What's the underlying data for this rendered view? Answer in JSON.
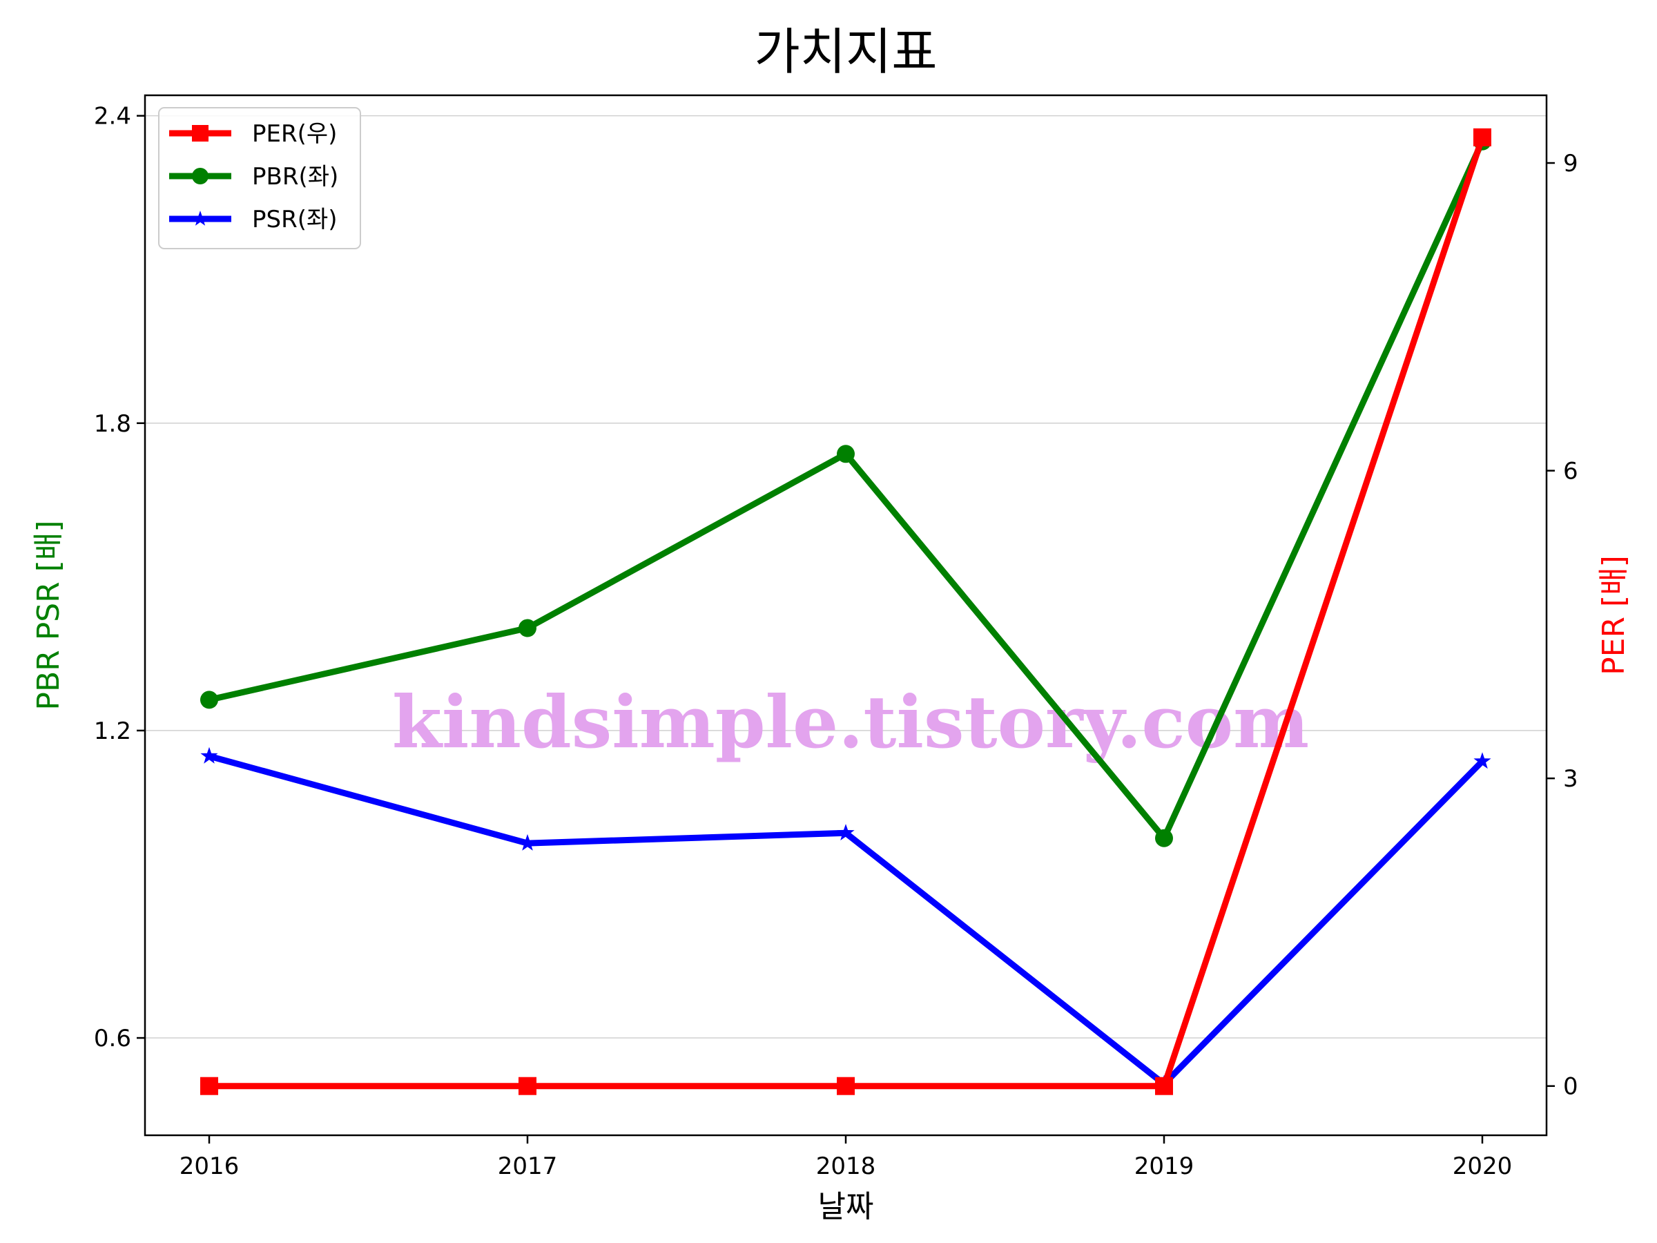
{
  "chart_data": {
    "type": "line",
    "title": "가치지표",
    "xlabel": "날짜",
    "ylabel_left": "PBR PSR [배]",
    "ylabel_right": "PER [배]",
    "categories": [
      "2016",
      "2017",
      "2018",
      "2019",
      "2020"
    ],
    "left_axis": {
      "ylim": [
        0.41,
        2.44
      ],
      "ticks": [
        0.6,
        1.2,
        1.8,
        2.4
      ],
      "tick_labels": [
        "0.6",
        "1.2",
        "1.8",
        "2.4"
      ]
    },
    "right_axis": {
      "ylim": [
        -0.48,
        9.66
      ],
      "ticks": [
        0,
        3,
        6,
        9
      ],
      "tick_labels": [
        "0",
        "3",
        "6",
        "9"
      ]
    },
    "grid": "horizontal (left axis)",
    "legend_position": "top-left",
    "series": [
      {
        "name": "PER(우)",
        "axis": "right",
        "color": "#ff0000",
        "marker": "square",
        "values": [
          0,
          0,
          0,
          0,
          9.25
        ]
      },
      {
        "name": "PBR(좌)",
        "axis": "left",
        "color": "#008000",
        "marker": "circle",
        "values": [
          1.26,
          1.4,
          1.74,
          0.99,
          2.35
        ]
      },
      {
        "name": "PSR(좌)",
        "axis": "left",
        "color": "#0000ff",
        "marker": "star",
        "values": [
          1.15,
          0.98,
          1.0,
          0.51,
          1.14
        ]
      }
    ]
  },
  "watermark": "kindsimple.tistory.com"
}
